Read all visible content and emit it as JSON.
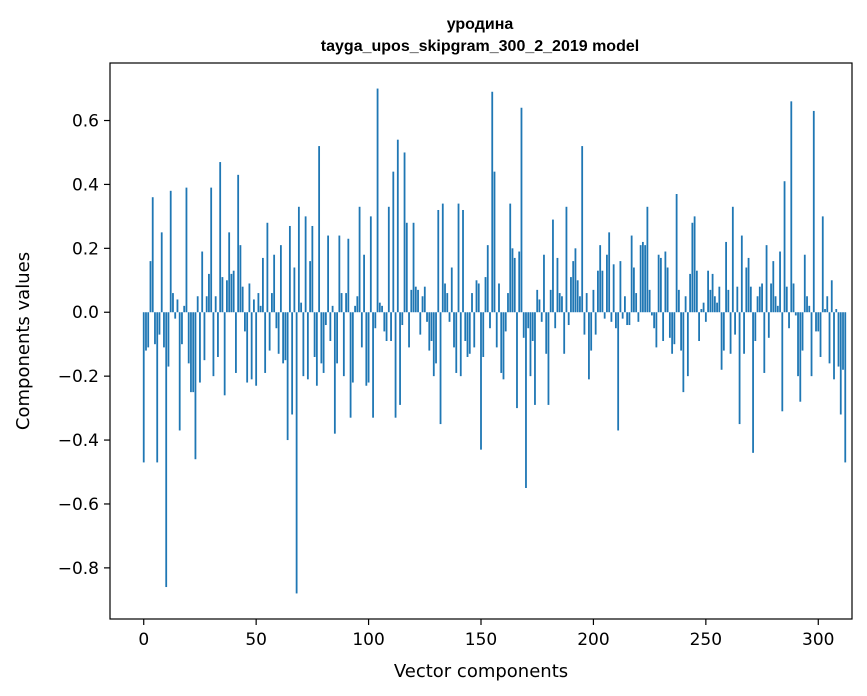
{
  "chart_data": {
    "type": "bar",
    "title": "уродина",
    "subtitle": "tayga_upos_skipgram_300_2_2019 model",
    "xlabel": "Vector components",
    "ylabel": "Components values",
    "xlim": [
      -15,
      315
    ],
    "ylim": [
      -0.96,
      0.78
    ],
    "xticks": [
      0,
      50,
      100,
      150,
      200,
      250,
      300
    ],
    "xtick_labels": [
      "0",
      "50",
      "100",
      "150",
      "200",
      "250",
      "300"
    ],
    "yticks": [
      -0.8,
      -0.6,
      -0.4,
      -0.2,
      0.0,
      0.2,
      0.4,
      0.6
    ],
    "ytick_labels": [
      "−0.8",
      "−0.6",
      "−0.4",
      "−0.2",
      "0.0",
      "0.2",
      "0.4",
      "0.6"
    ],
    "grid": false,
    "bar_color": "#1f77b4",
    "x_start": 0,
    "values": [
      -0.47,
      -0.12,
      -0.11,
      0.16,
      0.36,
      -0.1,
      -0.47,
      -0.07,
      0.25,
      -0.11,
      -0.86,
      -0.17,
      0.38,
      0.06,
      -0.02,
      0.04,
      -0.37,
      -0.1,
      0.02,
      0.39,
      -0.16,
      -0.25,
      -0.25,
      -0.46,
      0.05,
      -0.22,
      0.19,
      -0.15,
      0.05,
      0.12,
      0.39,
      -0.2,
      0.05,
      -0.14,
      0.47,
      0.11,
      -0.26,
      0.1,
      0.25,
      0.12,
      0.13,
      -0.19,
      0.43,
      0.21,
      0.08,
      -0.06,
      -0.22,
      0.09,
      -0.21,
      0.04,
      -0.23,
      0.06,
      0.02,
      0.17,
      -0.19,
      0.28,
      -0.12,
      0.06,
      0.18,
      -0.05,
      -0.13,
      0.21,
      -0.16,
      -0.15,
      -0.4,
      0.27,
      -0.32,
      0.14,
      -0.88,
      0.33,
      0.03,
      -0.2,
      0.3,
      -0.21,
      0.16,
      0.27,
      -0.14,
      -0.23,
      0.52,
      -0.16,
      -0.19,
      -0.04,
      0.24,
      -0.09,
      0.02,
      -0.38,
      -0.16,
      0.24,
      0.06,
      -0.2,
      0.06,
      0.23,
      -0.33,
      -0.22,
      0.02,
      0.05,
      0.33,
      -0.11,
      0.18,
      -0.23,
      -0.22,
      0.3,
      -0.33,
      -0.05,
      0.7,
      0.03,
      0.02,
      -0.06,
      -0.09,
      0.33,
      -0.09,
      0.44,
      -0.33,
      0.54,
      -0.29,
      -0.04,
      0.5,
      0.28,
      -0.11,
      0.07,
      0.28,
      0.08,
      0.07,
      -0.07,
      0.05,
      0.08,
      -0.03,
      -0.12,
      -0.09,
      -0.2,
      -0.16,
      0.32,
      -0.35,
      0.34,
      0.09,
      0.06,
      -0.03,
      0.14,
      -0.11,
      -0.19,
      0.34,
      -0.2,
      0.32,
      -0.09,
      -0.14,
      -0.13,
      0.06,
      -0.11,
      0.1,
      0.09,
      -0.43,
      -0.14,
      0.11,
      0.21,
      -0.05,
      0.69,
      0.44,
      -0.11,
      0.09,
      -0.19,
      -0.21,
      -0.06,
      0.06,
      0.34,
      0.2,
      0.17,
      -0.3,
      0.19,
      0.64,
      -0.08,
      -0.55,
      -0.05,
      -0.2,
      -0.09,
      -0.29,
      0.07,
      0.04,
      -0.03,
      0.18,
      -0.13,
      -0.29,
      0.07,
      0.29,
      -0.05,
      0.17,
      0.06,
      0.05,
      -0.13,
      0.33,
      -0.04,
      0.11,
      0.16,
      0.2,
      0.1,
      0.05,
      0.52,
      -0.07,
      0.06,
      -0.21,
      -0.12,
      0.07,
      -0.07,
      0.13,
      0.21,
      0.13,
      -0.02,
      0.18,
      0.25,
      -0.03,
      0.15,
      -0.05,
      -0.37,
      0.16,
      -0.02,
      0.05,
      -0.04,
      -0.04,
      0.24,
      0.14,
      0.06,
      -0.03,
      0.21,
      0.22,
      0.21,
      0.33,
      0.07,
      -0.01,
      -0.05,
      -0.11,
      0.18,
      0.17,
      -0.09,
      0.19,
      0.14,
      -0.08,
      -0.13,
      -0.1,
      0.37,
      0.07,
      -0.12,
      -0.25,
      0.05,
      -0.2,
      0.12,
      0.28,
      0.3,
      0.13,
      -0.09,
      0.01,
      0.03,
      -0.03,
      0.13,
      0.07,
      0.12,
      0.05,
      0.03,
      0.08,
      -0.18,
      -0.12,
      0.22,
      0.07,
      -0.13,
      0.33,
      -0.07,
      0.08,
      -0.35,
      0.24,
      -0.13,
      0.14,
      0.17,
      0.08,
      -0.44,
      -0.09,
      0.05,
      0.08,
      0.09,
      -0.19,
      0.21,
      -0.08,
      0.09,
      0.16,
      0.05,
      0.02,
      0.19,
      -0.31,
      0.41,
      0.08,
      -0.05,
      0.66,
      0.09,
      -0.01,
      -0.2,
      -0.28,
      -0.12,
      0.18,
      0.05,
      0.02,
      -0.2,
      0.63,
      -0.06,
      -0.06,
      -0.14,
      0.3,
      0.01,
      0.05,
      -0.16,
      0.1,
      -0.21,
      0.01,
      -0.17,
      -0.32,
      -0.18,
      -0.47
    ]
  }
}
